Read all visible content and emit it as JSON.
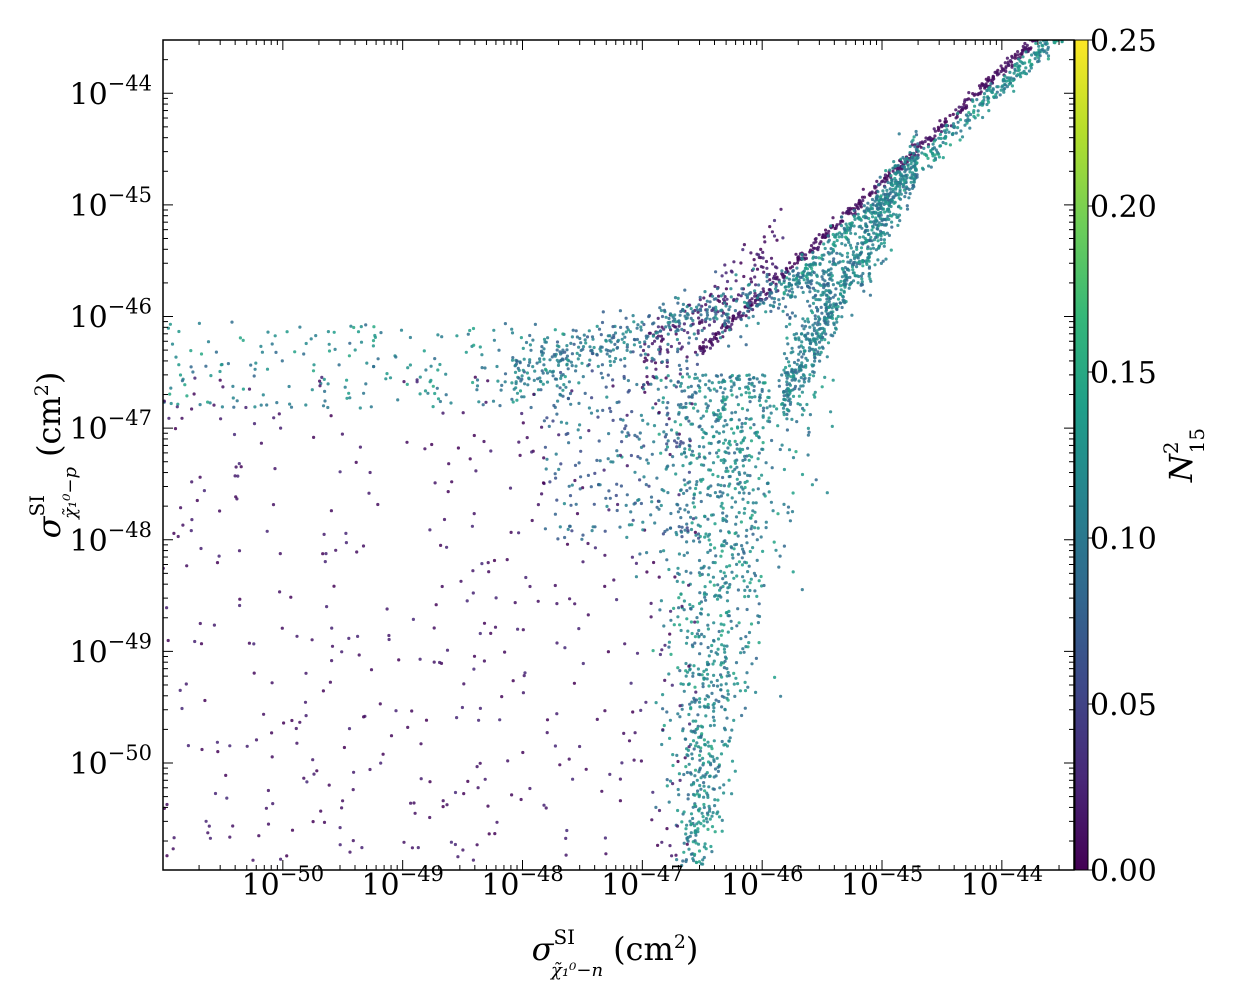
{
  "chart_data": {
    "type": "scatter",
    "x_axis": {
      "scale": "log",
      "range": [
        1e-51,
        4e-44
      ],
      "ticks": [
        1e-50,
        1e-49,
        1e-48,
        1e-47,
        1e-46,
        1e-45,
        1e-44
      ],
      "tick_labels": [
        {
          "base": "10",
          "exp": "−50"
        },
        {
          "base": "10",
          "exp": "−49"
        },
        {
          "base": "10",
          "exp": "−48"
        },
        {
          "base": "10",
          "exp": "−47"
        },
        {
          "base": "10",
          "exp": "−46"
        },
        {
          "base": "10",
          "exp": "−45"
        },
        {
          "base": "10",
          "exp": "−44"
        }
      ],
      "label": {
        "sym": "σ",
        "sup": "SI",
        "sub": "χ̃₁⁰−n",
        "unit": "(cm",
        "unit_exp": "2",
        "unit_end": ")"
      }
    },
    "y_axis": {
      "scale": "log",
      "range": [
        1.1e-51,
        3e-44
      ],
      "ticks": [
        1e-50,
        1e-49,
        1e-48,
        1e-47,
        1e-46,
        1e-45,
        1e-44
      ],
      "tick_labels": [
        {
          "base": "10",
          "exp": "−50"
        },
        {
          "base": "10",
          "exp": "−49"
        },
        {
          "base": "10",
          "exp": "−48"
        },
        {
          "base": "10",
          "exp": "−47"
        },
        {
          "base": "10",
          "exp": "−46"
        },
        {
          "base": "10",
          "exp": "−45"
        },
        {
          "base": "10",
          "exp": "−44"
        }
      ],
      "label": {
        "sym": "σ",
        "sup": "SI",
        "sub": "χ̃₁⁰−p",
        "unit": "(cm",
        "unit_exp": "2",
        "unit_end": ")"
      }
    },
    "colorbar": {
      "colormap": "viridis",
      "range": [
        0,
        0.25
      ],
      "ticks": [
        "0.00",
        "0.05",
        "0.10",
        "0.15",
        "0.20",
        "0.25"
      ],
      "label": {
        "sym": "N",
        "sup": "2",
        "sub": "15"
      },
      "stops": [
        "#440154",
        "#482878",
        "#3e4989",
        "#31688e",
        "#26828e",
        "#1f9e89",
        "#35b779",
        "#6ece58",
        "#b5de2b",
        "#fde725"
      ]
    },
    "grid": false,
    "legend": "none",
    "marker_alpha": 0.85,
    "groups": [
      {
        "x_range": [
          3e-47,
          4e-44
        ],
        "corr": "line",
        "x0": 1e-47,
        "y0": 1.6e-47,
        "slope": 1.0,
        "scatter_dex": 0.03,
        "z": [
          0.0,
          0.02
        ],
        "count": 500
      },
      {
        "x_range": [
          1.5e-46,
          4e-44
        ],
        "corr": "line",
        "x0": 1e-45,
        "y0": 1.15e-45,
        "slope": 1.0,
        "scatter_dex": 0.06,
        "z": [
          0.09,
          0.15
        ],
        "count": 500
      },
      {
        "x_range": [
          1e-47,
          1.5e-46
        ],
        "corr": "line",
        "x0": 5e-47,
        "y0": 1.6e-46,
        "slope": 0.95,
        "scatter_dex": 0.15,
        "z": [
          0.0,
          0.03
        ],
        "count": 160
      },
      {
        "x_range": [
          1.5e-46,
          2e-45
        ],
        "corr": "line",
        "x0": 3e-46,
        "y0": 8e-47,
        "slope": 1.85,
        "scatter_dex": 0.17,
        "z": [
          0.08,
          0.14
        ],
        "count": 750
      },
      {
        "x_range": [
          8e-49,
          4e-46
        ],
        "corr": "line",
        "x0": 1e-47,
        "y0": 7e-47,
        "slope": 0.3,
        "scatter_dex": 0.12,
        "z": [
          0.07,
          0.13
        ],
        "count": 480
      },
      {
        "x_range": [
          1e-51,
          3e-48
        ],
        "corr": "flat",
        "y_range": [
          1.5e-47,
          9e-47
        ],
        "z": [
          0.08,
          0.15
        ],
        "count": 220
      },
      {
        "x_range": [
          1e-47,
          1.2e-46
        ],
        "corr": "funnel",
        "y_range": [
          1.2e-51,
          3e-47
        ],
        "z": [
          0.08,
          0.15
        ],
        "count": 1100
      },
      {
        "x_range": [
          1e-51,
          3e-47
        ],
        "corr": "cloud",
        "y_range": [
          1.3e-51,
          3e-47
        ],
        "z": [
          0.0,
          0.03
        ],
        "count": 420
      },
      {
        "x_range": [
          1.5e-48,
          3e-47
        ],
        "corr": "cloud",
        "y_range": [
          1e-48,
          5e-47
        ],
        "z": [
          0.05,
          0.12
        ],
        "count": 260
      }
    ]
  }
}
